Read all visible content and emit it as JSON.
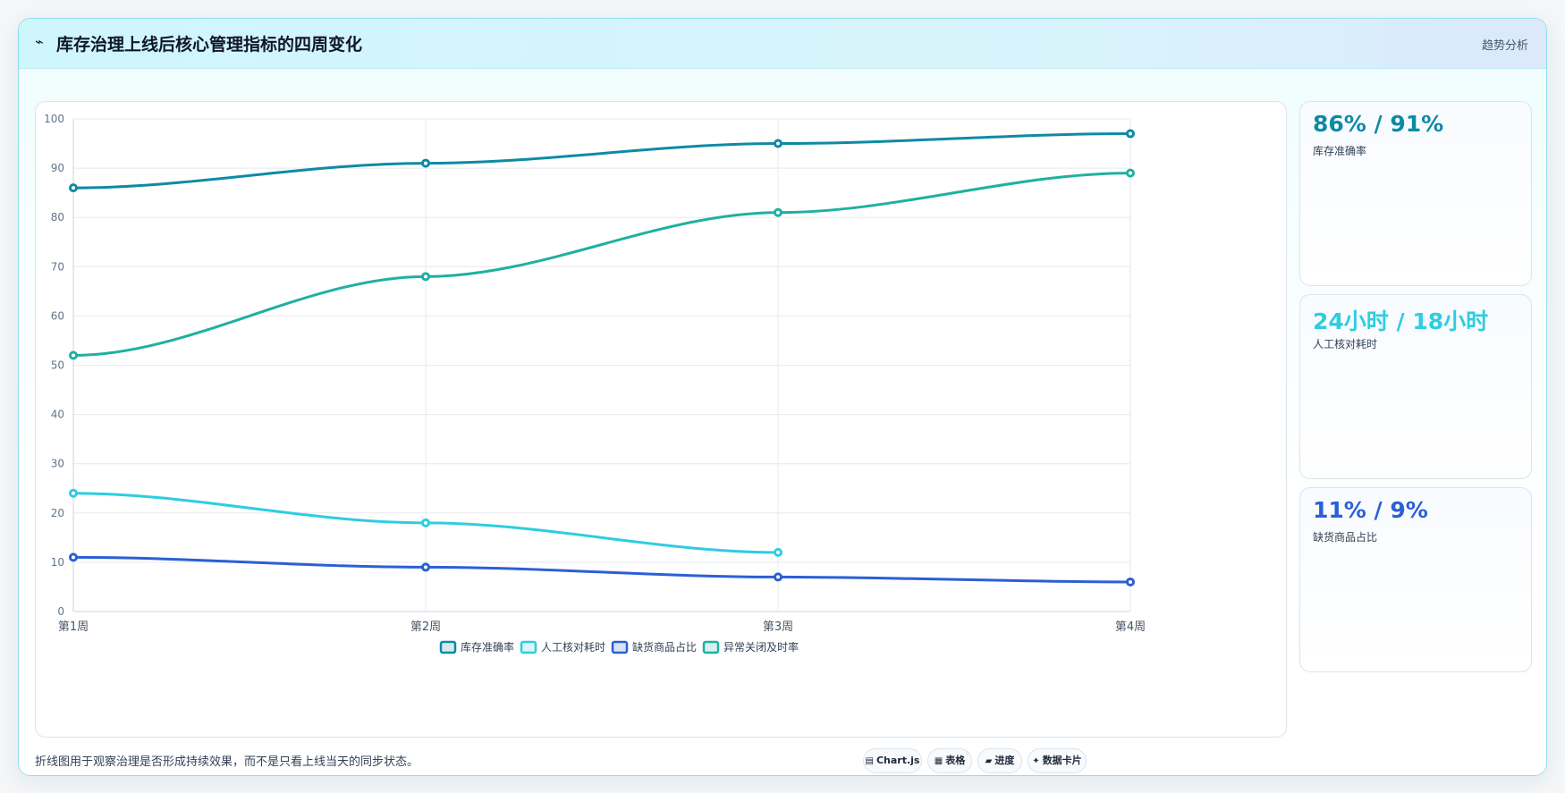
{
  "header": {
    "icon": "pulse-icon",
    "title": "库存治理上线后核心管理指标的四周变化",
    "right_label": "趋势分析"
  },
  "chart_data": {
    "type": "line",
    "categories": [
      "第1周",
      "第2周",
      "第3周",
      "第4周"
    ],
    "ylim": [
      0,
      100
    ],
    "y_ticks": [
      0,
      10,
      20,
      30,
      40,
      50,
      60,
      70,
      80,
      90,
      100
    ],
    "grid": true,
    "legend_position": "bottom",
    "series": [
      {
        "name": "库存准确率",
        "values": [
          86,
          91,
          95,
          97
        ],
        "color": "#0e8aa5"
      },
      {
        "name": "人工核对耗时",
        "values": [
          24,
          18,
          12,
          null
        ],
        "color": "#2ecde0"
      },
      {
        "name": "缺货商品占比",
        "values": [
          11,
          9,
          7,
          6
        ],
        "color": "#2b5fd6"
      },
      {
        "name": "异常关闭及时率",
        "values": [
          52,
          68,
          81,
          89
        ],
        "color": "#1fb0a0"
      }
    ]
  },
  "kpis": [
    {
      "value": "86% / 91%",
      "label": "库存准确率",
      "color": "#0e8aa5"
    },
    {
      "value": "24小时 / 18小时",
      "label": "人工核对耗时",
      "color": "#2ecde0"
    },
    {
      "value": "11% / 9%",
      "label": "缺货商品占比",
      "color": "#2b5fd6"
    }
  ],
  "footer": {
    "note": "折线图用于观察治理是否形成持续效果，而不是只看上线当天的同步状态。",
    "chips": [
      {
        "icon": "▤",
        "label": "Chart.js"
      },
      {
        "icon": "▦",
        "label": "表格"
      },
      {
        "icon": "▰",
        "label": "进度"
      },
      {
        "icon": "✦",
        "label": "数据卡片"
      }
    ]
  }
}
